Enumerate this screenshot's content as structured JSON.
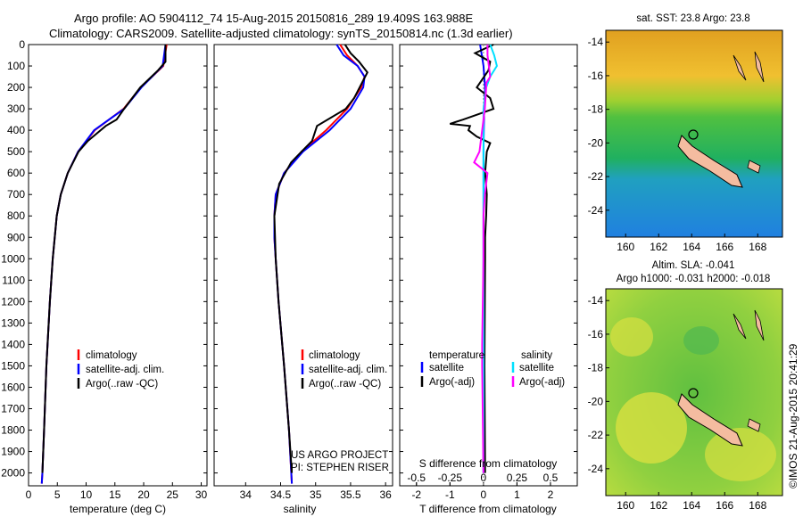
{
  "header": {
    "line1": "Argo profile: AO 5904112_74 15-Aug-2015 20150816_289 19.409S 163.988E",
    "line2": "Climatology: CARS2009. Satellite-adjusted climatology: synTS_20150814.nc (1.3d earlier)"
  },
  "colors": {
    "climatology": "#ff0000",
    "satellite": "#0000ff",
    "argo": "#000000",
    "satellite_salinity": "#00e0ff",
    "argo_salinity": "#ff00ff"
  },
  "depth_ticks": [
    "0",
    "100",
    "200",
    "300",
    "400",
    "500",
    "600",
    "700",
    "800",
    "900",
    "1000",
    "1100",
    "1200",
    "1300",
    "1400",
    "1500",
    "1600",
    "1700",
    "1800",
    "1900",
    "2000"
  ],
  "legend_profile": {
    "climatology": "climatology",
    "satellite": "satellite-adj. clim.",
    "argo": "Argo(..raw -QC)"
  },
  "legend_diff": {
    "temp_header": "temperature",
    "sal_header": "salinity",
    "satellite": "satellite",
    "argo": "Argo(-adj)"
  },
  "credit": {
    "project": "US ARGO PROJECT",
    "pi": "PI: STEPHEN RISER"
  },
  "map_sst": {
    "title": "sat. SST: 23.8 Argo: 23.8",
    "lat_ticks": [
      "-14",
      "-16",
      "-18",
      "-20",
      "-22",
      "-24"
    ],
    "lon_ticks": [
      "160",
      "162",
      "164",
      "166",
      "168"
    ]
  },
  "map_sla": {
    "title1": "Altim. SLA: -0.041",
    "title2": "Argo h1000: -0.031 h2000: -0.018",
    "lat_ticks": [
      "-14",
      "-16",
      "-18",
      "-20",
      "-22",
      "-24"
    ],
    "lon_ticks": [
      "160",
      "162",
      "164",
      "166",
      "168"
    ]
  },
  "stamp": "©IMOS 21-Aug-2015 20:41:29",
  "chart_data": [
    {
      "type": "line",
      "xlabel": "temperature (deg C)",
      "ylabel": "",
      "xlim": [
        0,
        31
      ],
      "ylim": [
        2060,
        0
      ],
      "xticks": [
        "0",
        "5",
        "10",
        "15",
        "20",
        "25",
        "30"
      ],
      "series": [
        {
          "name": "climatology",
          "depth": [
            0,
            100,
            200,
            300,
            400,
            500,
            600,
            700,
            800,
            1000,
            1200,
            1500,
            1800,
            2000,
            2050
          ],
          "values": [
            24.0,
            23.4,
            19.5,
            16.5,
            11.5,
            8.6,
            6.8,
            5.6,
            4.9,
            4.2,
            3.7,
            3.1,
            2.7,
            2.4,
            2.3
          ]
        },
        {
          "name": "satellite-adj. clim.",
          "depth": [
            0,
            100,
            200,
            300,
            400,
            500,
            600,
            700,
            800,
            1000,
            1200,
            1500,
            1800,
            2000,
            2050
          ],
          "values": [
            23.8,
            23.3,
            19.6,
            16.6,
            11.4,
            8.6,
            6.8,
            5.6,
            4.9,
            4.2,
            3.7,
            3.1,
            2.7,
            2.4,
            2.3
          ]
        },
        {
          "name": "Argo(..raw -QC)",
          "depth": [
            0,
            80,
            120,
            200,
            300,
            350,
            380,
            450,
            500,
            600,
            700,
            800,
            1000,
            1200,
            1500,
            1800,
            2000
          ],
          "values": [
            23.8,
            23.8,
            22.5,
            19.4,
            16.6,
            15.3,
            13.4,
            10.3,
            8.7,
            6.8,
            5.6,
            4.9,
            4.2,
            3.7,
            3.1,
            2.7,
            2.4
          ]
        }
      ]
    },
    {
      "type": "line",
      "xlabel": "salinity",
      "ylabel": "",
      "xlim": [
        33.55,
        36.1
      ],
      "ylim": [
        2060,
        0
      ],
      "xticks": [
        "34",
        "34.5",
        "35",
        "35.5",
        "36"
      ],
      "series": [
        {
          "name": "climatology",
          "depth": [
            0,
            50,
            100,
            150,
            200,
            300,
            400,
            500,
            600,
            700,
            800,
            900,
            1000,
            1200,
            1500,
            1800,
            2050
          ],
          "values": [
            35.35,
            35.45,
            35.6,
            35.7,
            35.65,
            35.45,
            35.15,
            34.8,
            34.55,
            34.43,
            34.41,
            34.41,
            34.43,
            34.47,
            34.55,
            34.62,
            34.66
          ]
        },
        {
          "name": "satellite-adj. clim.",
          "depth": [
            0,
            50,
            100,
            150,
            200,
            300,
            400,
            500,
            600,
            700,
            800,
            900,
            1000,
            1200,
            1500,
            1800,
            2050
          ],
          "values": [
            35.3,
            35.4,
            35.6,
            35.7,
            35.68,
            35.5,
            35.2,
            34.82,
            34.55,
            34.43,
            34.41,
            34.41,
            34.43,
            34.47,
            34.55,
            34.62,
            34.66
          ]
        },
        {
          "name": "Argo(..raw -QC)",
          "depth": [
            0,
            40,
            80,
            130,
            180,
            250,
            300,
            380,
            450,
            500,
            550,
            650,
            800,
            1000,
            1200,
            1500,
            1800,
            2000
          ],
          "values": [
            35.42,
            35.5,
            35.62,
            35.74,
            35.66,
            35.55,
            35.43,
            35.02,
            34.95,
            34.8,
            34.65,
            34.48,
            34.41,
            34.43,
            34.47,
            34.55,
            34.62,
            34.66
          ]
        }
      ]
    },
    {
      "type": "line",
      "xlabel": "T difference from climatology",
      "xlabel_top": "S difference from climatology",
      "ylabel": "",
      "xlim": [
        -2.5,
        2.8
      ],
      "xlim_salinity": [
        -0.625,
        0.7
      ],
      "ylim": [
        2060,
        0
      ],
      "xticks": [
        "-2",
        "-1",
        "0",
        "1",
        "2"
      ],
      "xticks_salinity": [
        "-0.5",
        "-0.25",
        "0",
        "0.25",
        "0.5"
      ],
      "series": [
        {
          "name": "satellite (temperature)",
          "depth": [
            0,
            50,
            100,
            200,
            300,
            500,
            1000,
            1500,
            2000
          ],
          "values": [
            -0.1,
            -0.05,
            0.0,
            0.05,
            0.02,
            0.0,
            0.0,
            0.0,
            0.0
          ]
        },
        {
          "name": "Argo(-adj) (temperature)",
          "depth": [
            0,
            40,
            80,
            120,
            200,
            250,
            300,
            350,
            370,
            380,
            400,
            430,
            460,
            500,
            600,
            700,
            800,
            900,
            1000,
            1500,
            2000
          ],
          "values": [
            0.3,
            -0.25,
            0.2,
            0.15,
            -0.2,
            0.2,
            0.3,
            -0.6,
            -1.0,
            -0.4,
            -0.45,
            -0.2,
            0.2,
            0.1,
            0.05,
            0.1,
            0.08,
            0.05,
            0.05,
            0.03,
            0.05
          ]
        },
        {
          "name": "satellite (salinity)",
          "depth": [
            0,
            50,
            100,
            150,
            200,
            300,
            400,
            500,
            1000,
            1500,
            2000
          ],
          "values": [
            0.05,
            0.08,
            0.1,
            0.05,
            0.02,
            0.0,
            0.0,
            0.0,
            0.0,
            0.0,
            0.0
          ]
        },
        {
          "name": "Argo(-adj) (salinity)",
          "depth": [
            0,
            50,
            100,
            150,
            180,
            200,
            300,
            400,
            500,
            550,
            600,
            700,
            800,
            1000,
            1400,
            1500,
            2000
          ],
          "values": [
            0.03,
            0.03,
            0.04,
            0.05,
            0.02,
            0.02,
            0.01,
            -0.01,
            -0.03,
            -0.07,
            0.03,
            0.01,
            0.0,
            0.0,
            -0.01,
            -0.01,
            0.0
          ]
        }
      ]
    }
  ]
}
